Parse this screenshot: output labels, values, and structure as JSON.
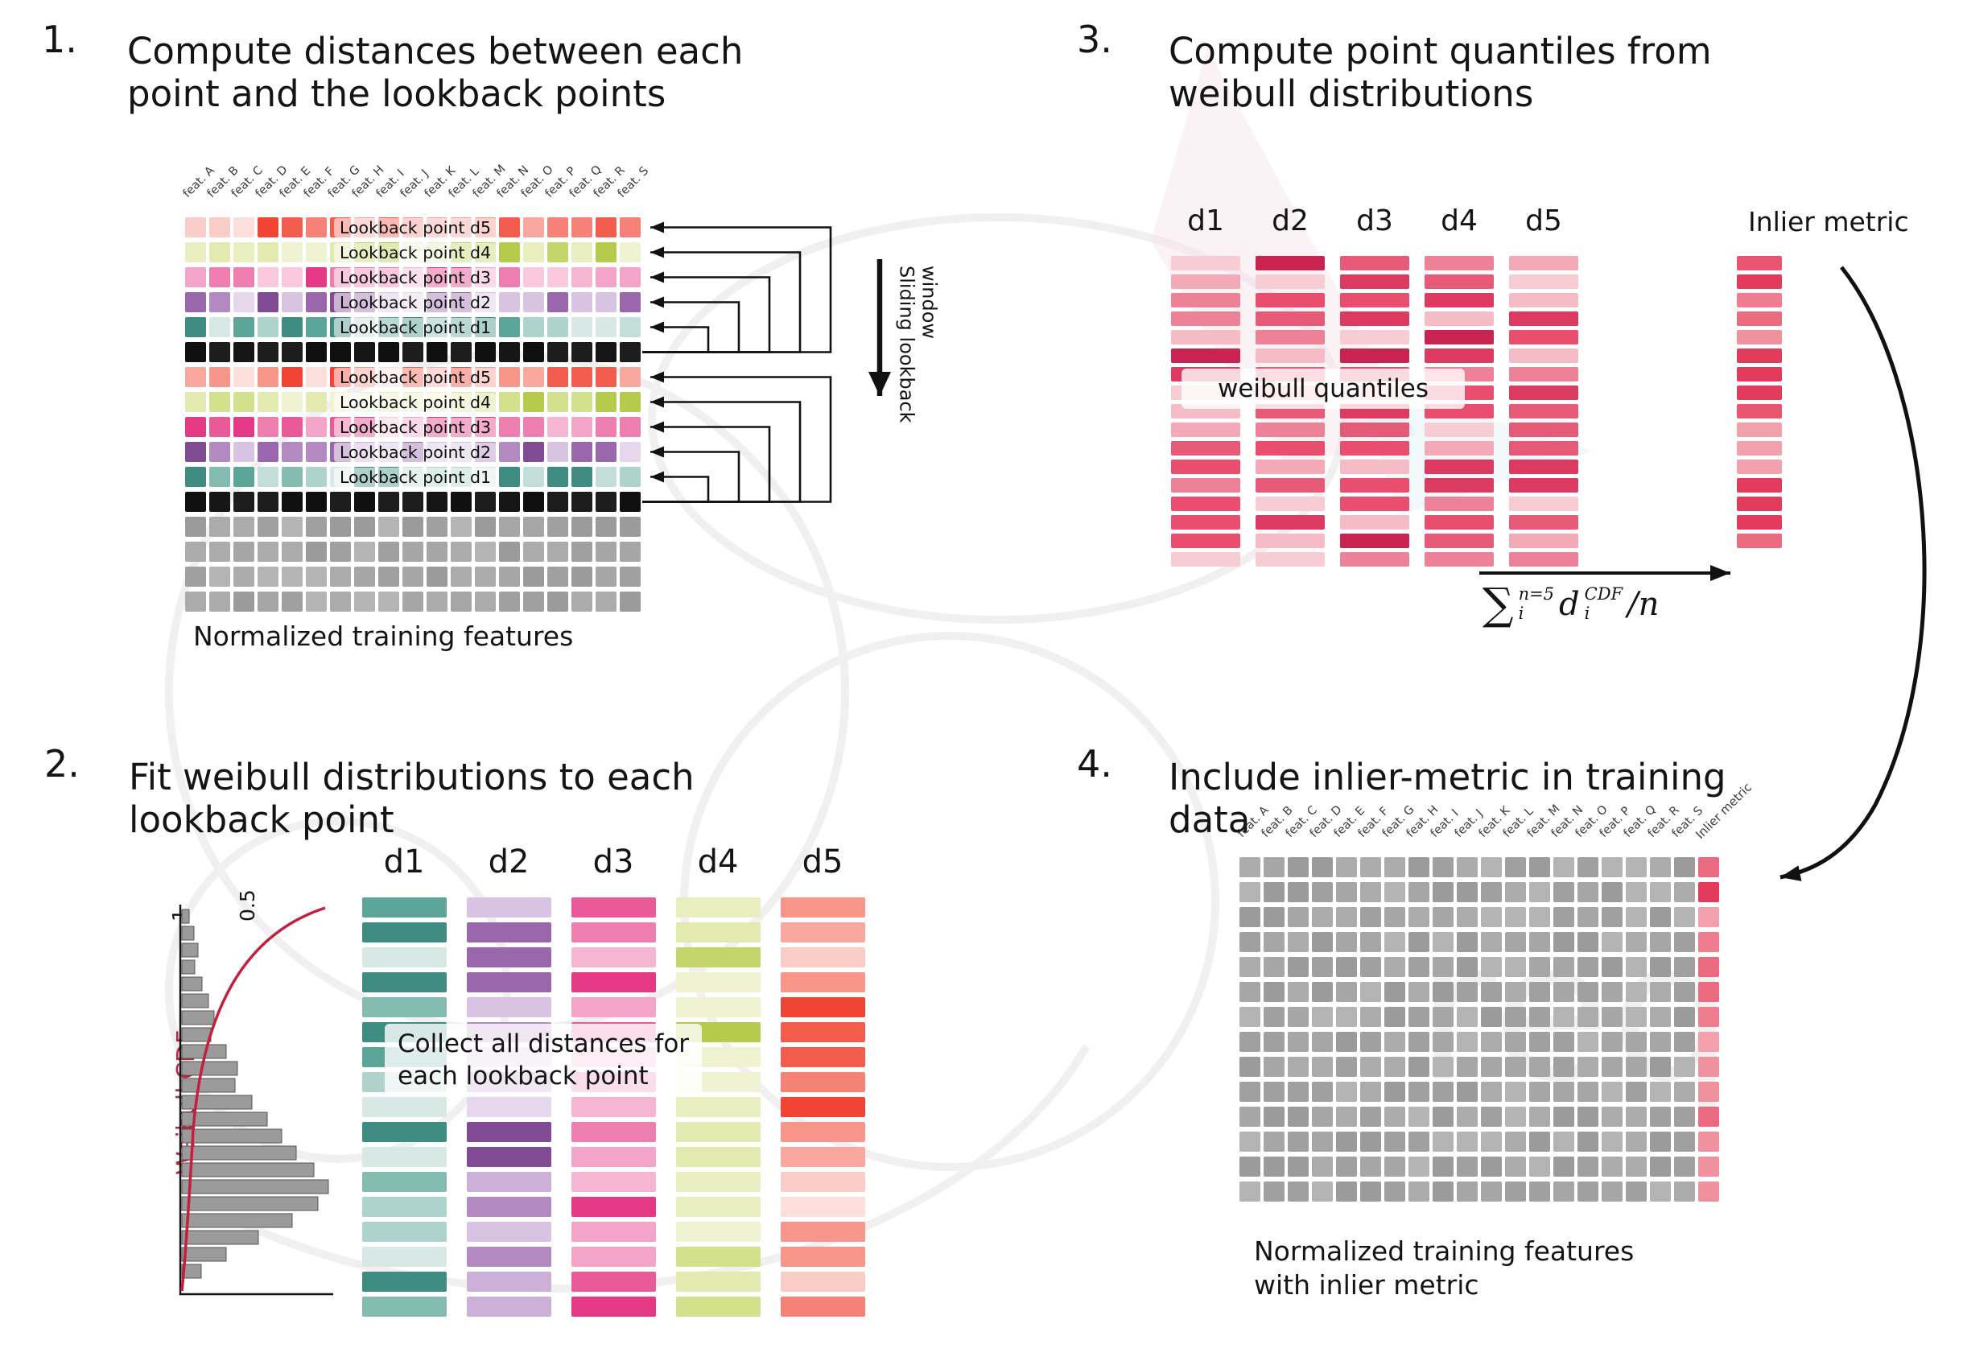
{
  "colors": {
    "accent_red": "#c41f3e",
    "arrow": "#111111",
    "palettes": {
      "red": [
        "#fbcdc8",
        "#f8a89f",
        "#f58276",
        "#f35d4e",
        "#f14434",
        "#f9968c",
        "#fcdeda"
      ],
      "yellowgreen": [
        "#f0f3d2",
        "#e2eaaf",
        "#d3e18c",
        "#c4d669",
        "#b6cb4c",
        "#e9eec1"
      ],
      "pink": [
        "#f9c9de",
        "#f4a4c8",
        "#ee7eb0",
        "#e95a99",
        "#e43a86",
        "#f6b6d3"
      ],
      "purple": [
        "#e6d7ec",
        "#cdb0d8",
        "#b389c2",
        "#9a66ac",
        "#814b93",
        "#d9c3e2"
      ],
      "teal": [
        "#d8e9e5",
        "#aed3cc",
        "#84bcb2",
        "#5ba599",
        "#3f8d82",
        "#c3ded9"
      ],
      "black": [
        "#161616",
        "#1d1d1d",
        "#101010"
      ],
      "gray": [
        "#ababab",
        "#a0a0a0",
        "#b4b4b4",
        "#a6a6a6",
        "#9b9b9b"
      ],
      "quantile": [
        "#f8ccd3",
        "#f3a9b6",
        "#ed8197",
        "#e65a78",
        "#dc3a60",
        "#c92450",
        "#f6bcc6",
        "#e94e6e"
      ],
      "inlier": [
        "#f3a0ad",
        "#ee7d8f",
        "#e85570",
        "#e23b5c",
        "#f0919f",
        "#ea6a80"
      ]
    }
  },
  "panel1": {
    "number": "1.",
    "title": "Compute distances between each\npoint and the lookback points",
    "feature_labels": [
      "feat. A",
      "feat. B",
      "feat. C",
      "feat. D",
      "feat. E",
      "feat. F",
      "feat. G",
      "feat. H",
      "feat. I",
      "feat. J",
      "feat. K",
      "feat. L",
      "feat. M",
      "feat. N",
      "feat. O",
      "feat. P",
      "feat. Q",
      "feat. R",
      "feat. S"
    ],
    "row_types": [
      "red",
      "yellowgreen",
      "pink",
      "purple",
      "teal",
      "black",
      "red",
      "yellowgreen",
      "pink",
      "purple",
      "teal",
      "black",
      "gray",
      "gray",
      "gray",
      "gray"
    ],
    "lookback_rows": [
      {
        "row": 0,
        "label": "Lookback point d5"
      },
      {
        "row": 1,
        "label": "Lookback point d4"
      },
      {
        "row": 2,
        "label": "Lookback point d3"
      },
      {
        "row": 3,
        "label": "Lookback point d2"
      },
      {
        "row": 4,
        "label": "Lookback point d1"
      },
      {
        "row": 6,
        "label": "Lookback point d5"
      },
      {
        "row": 7,
        "label": "Lookback point d4"
      },
      {
        "row": 8,
        "label": "Lookback point d3"
      },
      {
        "row": 9,
        "label": "Lookback point d2"
      },
      {
        "row": 10,
        "label": "Lookback point d1"
      }
    ],
    "sliding_label": "Sliding lookback window",
    "caption": "Normalized training features"
  },
  "panel2": {
    "number": "2.",
    "title": "Fit weibull distributions to each\nlookback point",
    "axis_labels": [
      "1",
      "0.5"
    ],
    "cdf_label": "Weibull CDF",
    "col_headers": [
      "d1",
      "d2",
      "d3",
      "d4",
      "d5"
    ],
    "col_palettes": [
      "teal",
      "purple",
      "pink",
      "yellowgreen",
      "red"
    ],
    "overlay": "Collect all distances for\neach lookback point",
    "hist": [
      0.05,
      0.08,
      0.11,
      0.09,
      0.14,
      0.18,
      0.22,
      0.2,
      0.3,
      0.38,
      0.36,
      0.48,
      0.58,
      0.68,
      0.78,
      0.9,
      1.0,
      0.93,
      0.75,
      0.52,
      0.3,
      0.13
    ]
  },
  "panel3": {
    "number": "3.",
    "title": "Compute point quantiles from\nweibull distributions",
    "col_headers": [
      "d1",
      "d2",
      "d3",
      "d4",
      "d5"
    ],
    "overlay": "weibull quantiles",
    "inlier_header": "Inlier metric",
    "formula": {
      "sum": "∑",
      "sum_sup": "n=5",
      "sum_sub": "i",
      "term": "d",
      "term_sup": "CDF",
      "term_sub": "i",
      "tail": "/n"
    }
  },
  "panel4": {
    "number": "4.",
    "title": "Include inlier-metric in training\ndata",
    "feature_labels": [
      "feat. A",
      "feat. B",
      "feat. C",
      "feat. D",
      "feat. E",
      "feat. F",
      "feat. G",
      "feat. H",
      "feat. I",
      "feat. J",
      "feat. K",
      "feat. L",
      "feat. M",
      "feat. N",
      "feat. O",
      "feat. P",
      "feat. Q",
      "feat. R",
      "feat. S"
    ],
    "inlier_label": "Inlier metric",
    "caption": "Normalized training features\nwith inlier metric"
  }
}
